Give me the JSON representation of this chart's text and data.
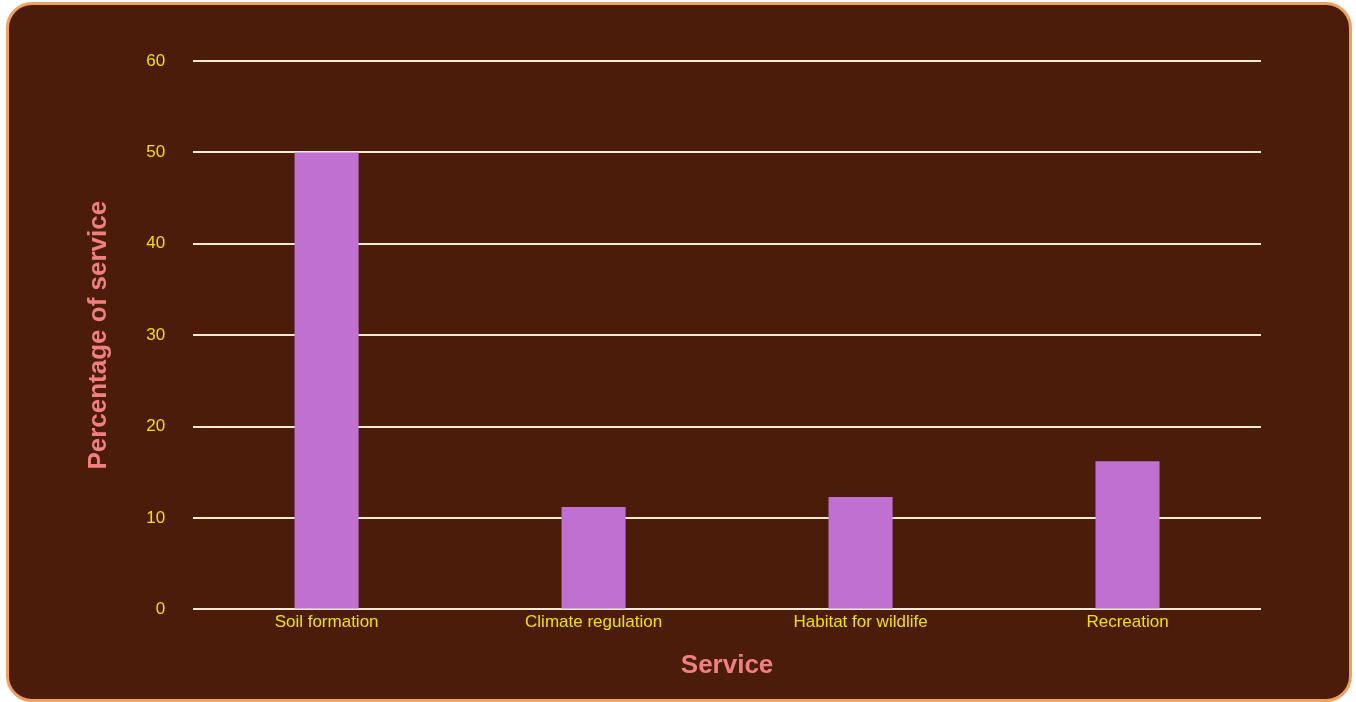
{
  "chart_data": {
    "type": "bar",
    "xlabel": "Service",
    "ylabel": "Percentage of service",
    "categories": [
      "Soil formation",
      "Climate regulation",
      "Habitat for wildlife",
      "Recreation"
    ],
    "values": [
      50,
      11.2,
      12.3,
      16.2
    ],
    "color": "#c070d0",
    "ylim": [
      0,
      60
    ],
    "yticks": [
      0,
      10,
      20,
      30,
      40,
      50,
      60
    ],
    "grid": "y",
    "legend": false
  }
}
